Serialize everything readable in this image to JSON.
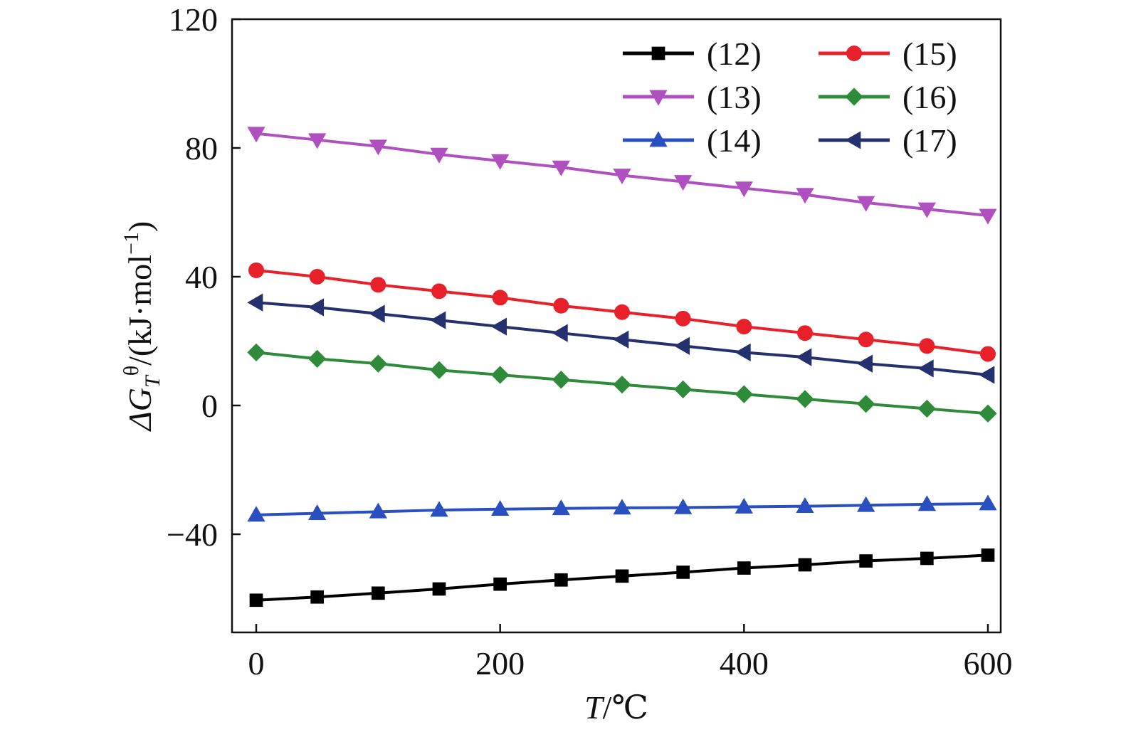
{
  "chart_data": {
    "type": "line",
    "title": "",
    "xlabel": {
      "italic": "T",
      "rest": "/℃"
    },
    "ylabel": {
      "delta": "ΔG",
      "sub": "T",
      "sup": "θ",
      "rest": "/(kJ·mol",
      "exp": "−1",
      "close": ")"
    },
    "xlim": [
      -20,
      610
    ],
    "ylim": [
      -70,
      120
    ],
    "xticks": [
      0,
      200,
      400,
      600
    ],
    "xtick_labels": [
      "0",
      "200",
      "400",
      "600"
    ],
    "yticks": [
      -40,
      0,
      40,
      80,
      120
    ],
    "ytick_labels": [
      "−40",
      "0",
      "40",
      "80",
      "120"
    ],
    "grid": false,
    "legend_position": "top-right",
    "x": [
      0,
      50,
      100,
      150,
      200,
      250,
      300,
      350,
      400,
      450,
      500,
      550,
      600
    ],
    "series": [
      {
        "name": "(12)",
        "color": "#000000",
        "marker": "square",
        "values": [
          -60.5,
          -59.5,
          -58.3,
          -57.0,
          -55.5,
          -54.2,
          -53.0,
          -51.8,
          -50.5,
          -49.5,
          -48.3,
          -47.5,
          -46.5
        ]
      },
      {
        "name": "(13)",
        "color": "#b050c0",
        "marker": "triangle-down",
        "values": [
          84.5,
          82.5,
          80.5,
          78.0,
          76.0,
          74.0,
          71.5,
          69.5,
          67.5,
          65.5,
          63.0,
          61.0,
          59.0
        ]
      },
      {
        "name": "(14)",
        "color": "#2a4fc0",
        "marker": "triangle-up",
        "values": [
          -34.0,
          -33.5,
          -33.0,
          -32.5,
          -32.2,
          -32.0,
          -31.8,
          -31.7,
          -31.5,
          -31.3,
          -31.0,
          -30.7,
          -30.5
        ]
      },
      {
        "name": "(15)",
        "color": "#e8202a",
        "marker": "circle",
        "values": [
          42.0,
          40.0,
          37.5,
          35.5,
          33.5,
          31.0,
          29.0,
          27.0,
          24.5,
          22.5,
          20.5,
          18.5,
          16.0
        ]
      },
      {
        "name": "(16)",
        "color": "#2e8b3a",
        "marker": "diamond",
        "values": [
          16.5,
          14.5,
          13.0,
          11.0,
          9.5,
          8.0,
          6.5,
          5.0,
          3.5,
          2.0,
          0.5,
          -1.0,
          -2.5
        ]
      },
      {
        "name": "(17)",
        "color": "#25306e",
        "marker": "triangle-left",
        "values": [
          32.0,
          30.5,
          28.5,
          26.5,
          24.5,
          22.5,
          20.5,
          18.5,
          16.5,
          15.0,
          13.0,
          11.5,
          9.5
        ]
      }
    ],
    "legend_layout": [
      [
        "(12)",
        "(15)"
      ],
      [
        "(13)",
        "(16)"
      ],
      [
        "(14)",
        "(17)"
      ]
    ]
  }
}
